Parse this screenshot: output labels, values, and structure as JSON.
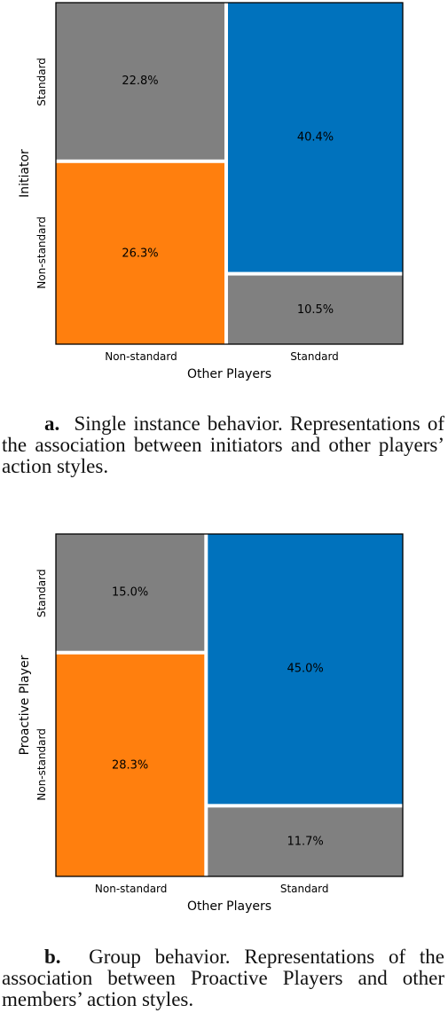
{
  "chart_data": [
    {
      "type": "mosaic",
      "xlabel": "Other Players",
      "ylabel": "Initiator",
      "x_categories": [
        "Non-standard",
        "Standard"
      ],
      "y_categories": [
        "Standard",
        "Non-standard"
      ],
      "cells": [
        {
          "x": "Non-standard",
          "y": "Standard",
          "value": 22.8,
          "label": "22.8%",
          "color": "#808080"
        },
        {
          "x": "Non-standard",
          "y": "Non-standard",
          "value": 26.3,
          "label": "26.3%",
          "color": "#ff7f0e"
        },
        {
          "x": "Standard",
          "y": "Standard",
          "value": 40.4,
          "label": "40.4%",
          "color": "#0072bd"
        },
        {
          "x": "Standard",
          "y": "Non-standard",
          "value": 10.5,
          "label": "10.5%",
          "color": "#808080"
        }
      ]
    },
    {
      "type": "mosaic",
      "xlabel": "Other Players",
      "ylabel": "Proactive Player",
      "x_categories": [
        "Non-standard",
        "Standard"
      ],
      "y_categories": [
        "Standard",
        "Non-standard"
      ],
      "cells": [
        {
          "x": "Non-standard",
          "y": "Standard",
          "value": 15.0,
          "label": "15.0%",
          "color": "#808080"
        },
        {
          "x": "Non-standard",
          "y": "Non-standard",
          "value": 28.3,
          "label": "28.3%",
          "color": "#ff7f0e"
        },
        {
          "x": "Standard",
          "y": "Standard",
          "value": 45.0,
          "label": "45.0%",
          "color": "#0072bd"
        },
        {
          "x": "Standard",
          "y": "Non-standard",
          "value": 11.7,
          "label": "11.7%",
          "color": "#808080"
        }
      ]
    }
  ],
  "captions": {
    "a": {
      "letter": "a.",
      "text": "Single instance behavior. Representations of the association between initiators and other players’ action styles."
    },
    "b": {
      "letter": "b.",
      "text": "Group behavior. Representations of the association between Proactive Players and other members’ action styles."
    }
  }
}
